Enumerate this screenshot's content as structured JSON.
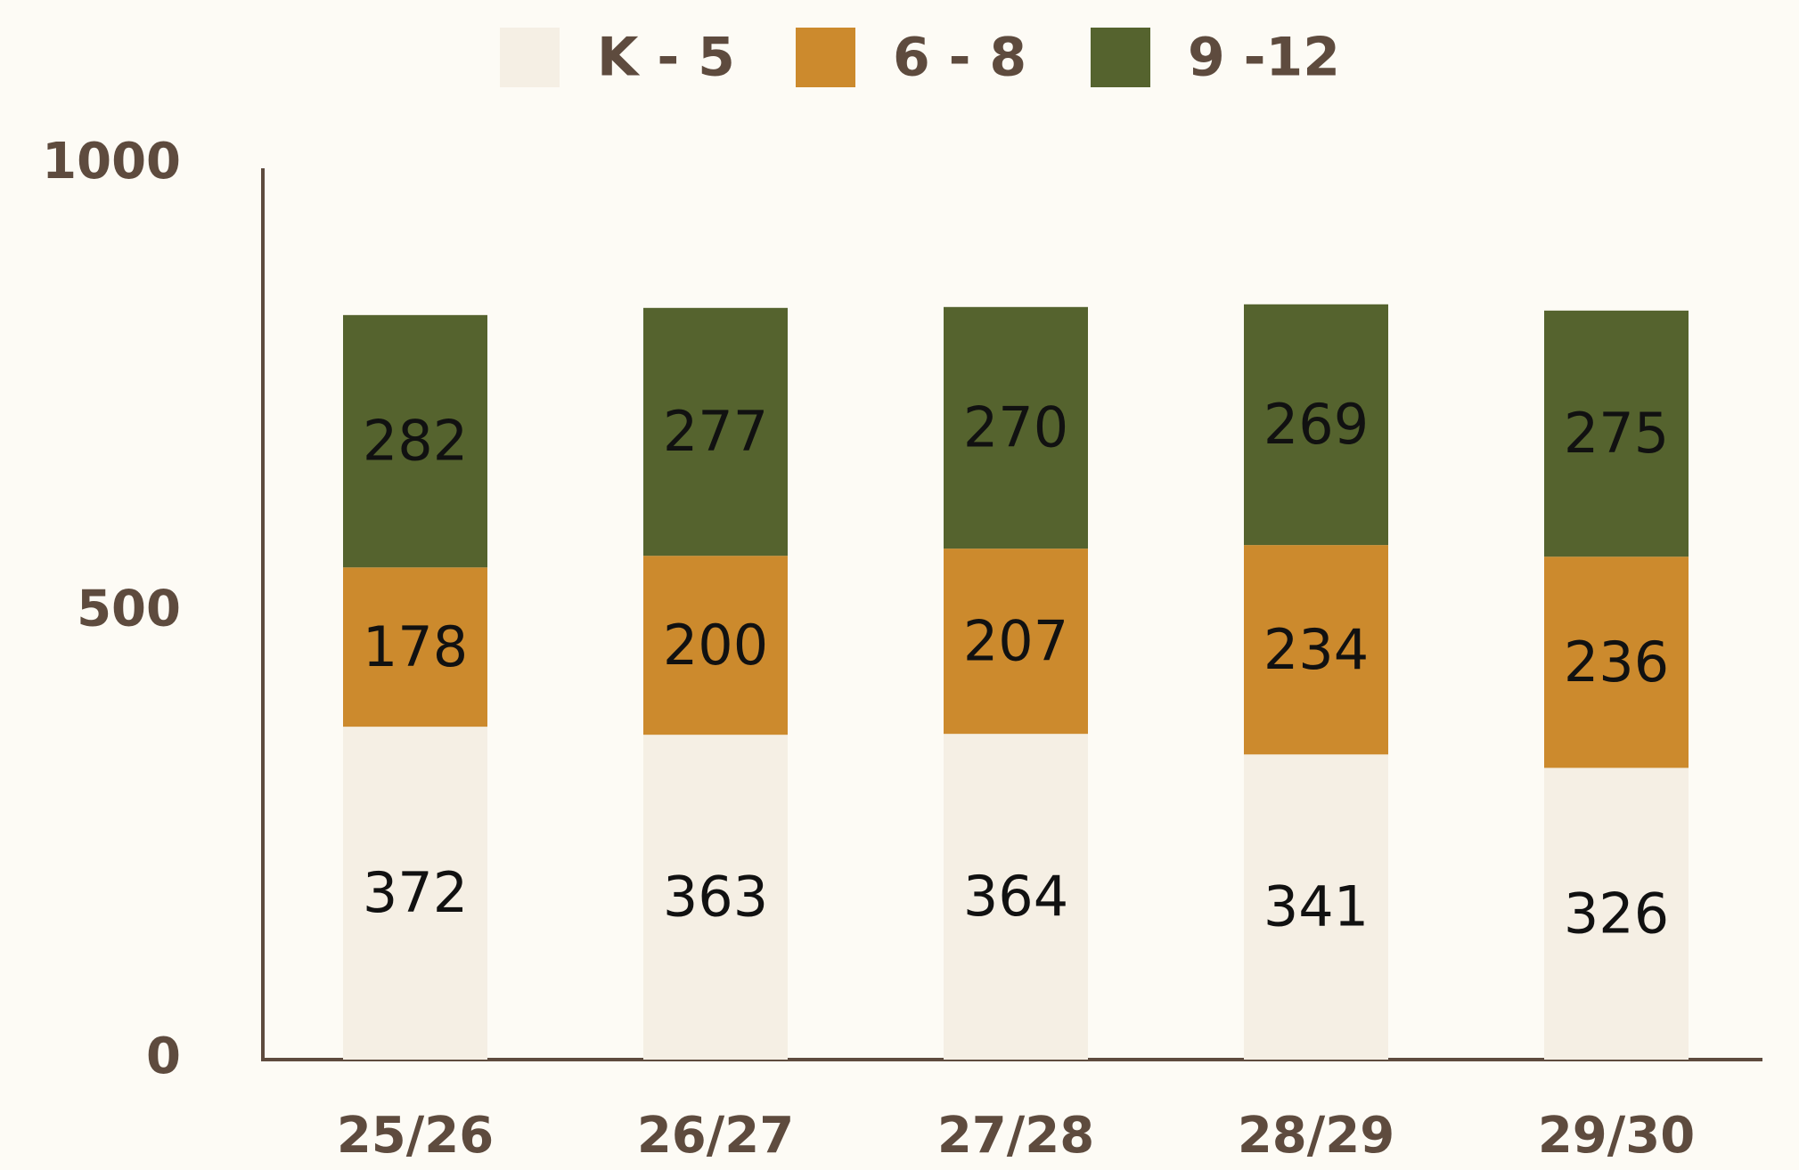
{
  "chart_data": {
    "type": "stacked_bar",
    "categories": [
      "25/26",
      "26/27",
      "27/28",
      "28/29",
      "29/30"
    ],
    "series": [
      {
        "name": "K - 5",
        "color": "#f5efe4",
        "values": [
          372,
          363,
          364,
          341,
          326
        ]
      },
      {
        "name": "6 - 8",
        "color": "#cc8a2d",
        "values": [
          178,
          200,
          207,
          234,
          236
        ]
      },
      {
        "name": "9 -12",
        "color": "#55632e",
        "values": [
          282,
          277,
          270,
          269,
          275
        ]
      }
    ],
    "ylim": [
      0,
      1000
    ],
    "yticks": [
      0,
      500,
      1000
    ],
    "legend": "top",
    "grid": false
  }
}
